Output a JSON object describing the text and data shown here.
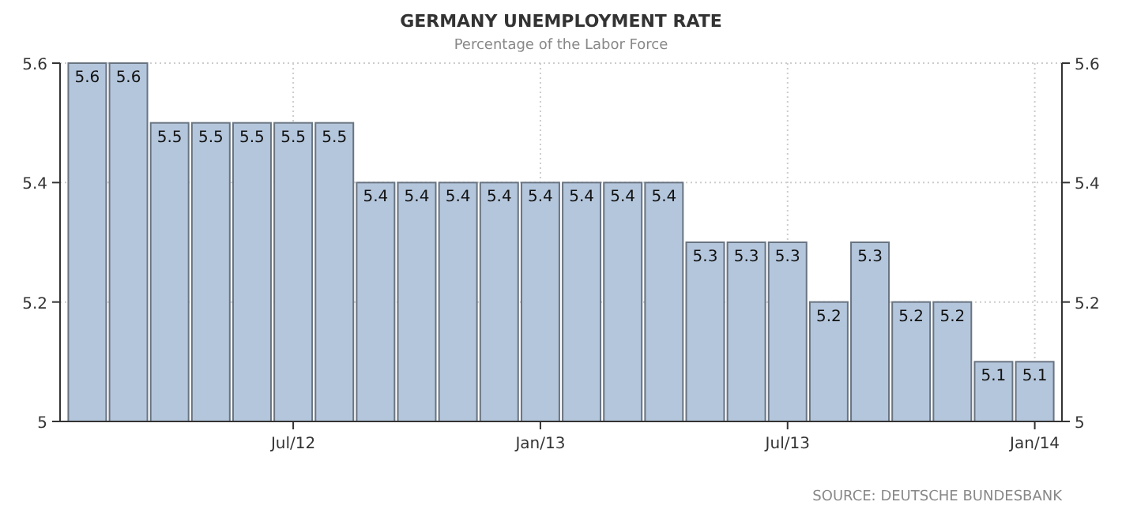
{
  "chart_data": {
    "type": "bar",
    "title": "GERMANY UNEMPLOYMENT RATE",
    "subtitle": "Percentage of the Labor Force",
    "categories": [
      null,
      null,
      null,
      null,
      null,
      "Jul/12",
      null,
      null,
      null,
      null,
      null,
      "Jan/13",
      null,
      null,
      null,
      null,
      null,
      "Jul/13",
      null,
      null,
      null,
      null,
      null,
      "Jan/14"
    ],
    "values": [
      5.6,
      5.6,
      5.5,
      5.5,
      5.5,
      5.5,
      5.5,
      5.4,
      5.4,
      5.4,
      5.4,
      5.4,
      5.4,
      5.4,
      5.4,
      5.3,
      5.3,
      5.3,
      5.2,
      5.3,
      5.2,
      5.2,
      5.1,
      5.1
    ],
    "color": "#b4c6dc",
    "ylim": [
      5,
      5.6
    ],
    "yticks": [
      5,
      5.2,
      5.4,
      5.6
    ],
    "y2lim": [
      5,
      5.6
    ],
    "y2ticks": [
      5,
      5.2,
      5.4,
      5.6
    ],
    "grid": true,
    "data_labels": true,
    "annotations": [
      "SOURCE: DEUTSCHE BUNDESBANK"
    ]
  }
}
